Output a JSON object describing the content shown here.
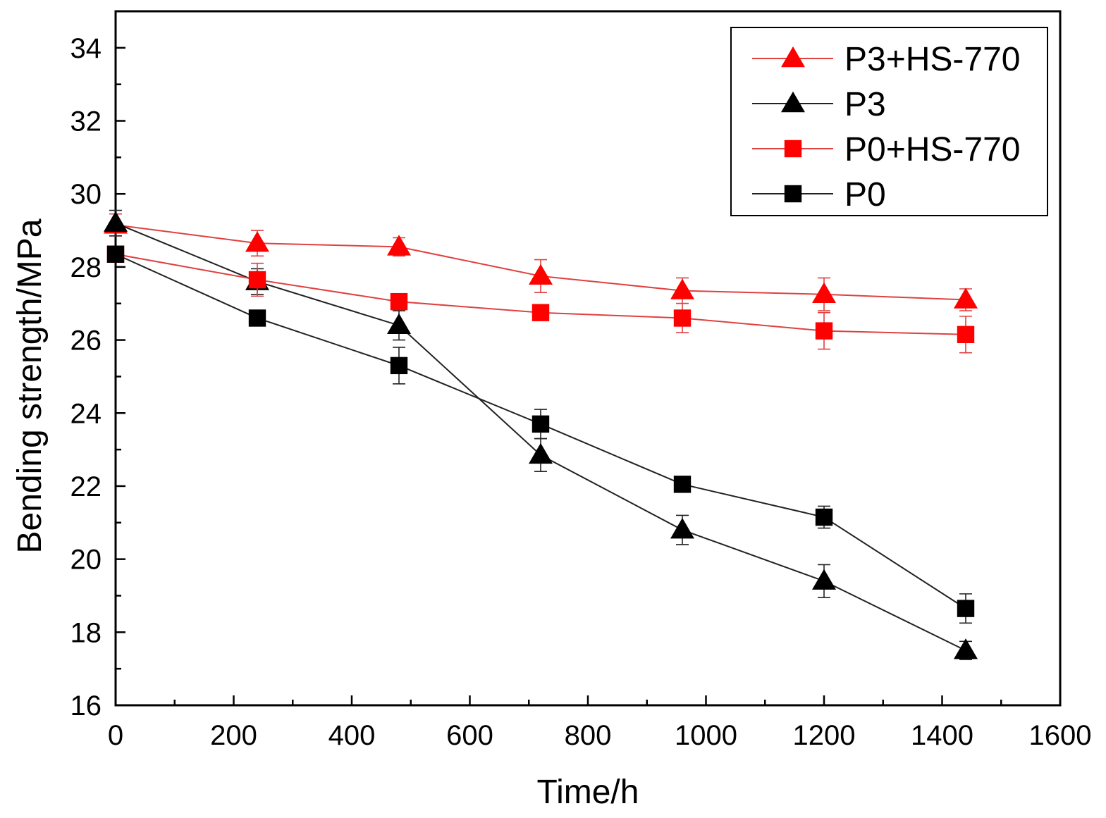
{
  "chart_data": {
    "type": "line",
    "title": "",
    "xlabel": "Time/h",
    "ylabel": "Bending strength/MPa",
    "xlim": [
      0,
      1600
    ],
    "ylim": [
      16,
      35
    ],
    "x_ticks": [
      0,
      200,
      400,
      600,
      800,
      1000,
      1200,
      1400,
      1600
    ],
    "x_minor_step": 100,
    "y_ticks": [
      16,
      18,
      20,
      22,
      24,
      26,
      28,
      30,
      32,
      34
    ],
    "y_minor_step": 1,
    "grid": false,
    "legend_position": "top-right",
    "x": [
      0,
      240,
      480,
      720,
      960,
      1200,
      1440
    ],
    "series": [
      {
        "name": "P3+HS-770",
        "color": "#ff0000",
        "line_color": "#e04040",
        "marker": "triangle",
        "values": [
          29.15,
          28.65,
          28.55,
          27.75,
          27.35,
          27.25,
          27.1
        ],
        "errors": [
          0.3,
          0.35,
          0.25,
          0.45,
          0.35,
          0.45,
          0.3
        ]
      },
      {
        "name": "P3",
        "color": "#000000",
        "line_color": "#222222",
        "marker": "triangle",
        "values": [
          29.2,
          27.6,
          26.4,
          22.85,
          20.8,
          19.4,
          17.5
        ],
        "errors": [
          0.35,
          0.35,
          0.4,
          0.45,
          0.4,
          0.45,
          0.25
        ]
      },
      {
        "name": "P0+HS-770",
        "color": "#ff0000",
        "line_color": "#e04040",
        "marker": "square",
        "values": [
          28.35,
          27.65,
          27.05,
          26.75,
          26.6,
          26.25,
          26.15
        ],
        "errors": [
          0.2,
          0.45,
          0.2,
          0.15,
          0.4,
          0.5,
          0.5
        ]
      },
      {
        "name": "P0",
        "color": "#000000",
        "line_color": "#222222",
        "marker": "square",
        "values": [
          28.35,
          26.6,
          25.3,
          23.7,
          22.05,
          21.15,
          18.65
        ],
        "errors": [
          0.2,
          0.2,
          0.5,
          0.4,
          0.15,
          0.3,
          0.4
        ]
      }
    ]
  }
}
